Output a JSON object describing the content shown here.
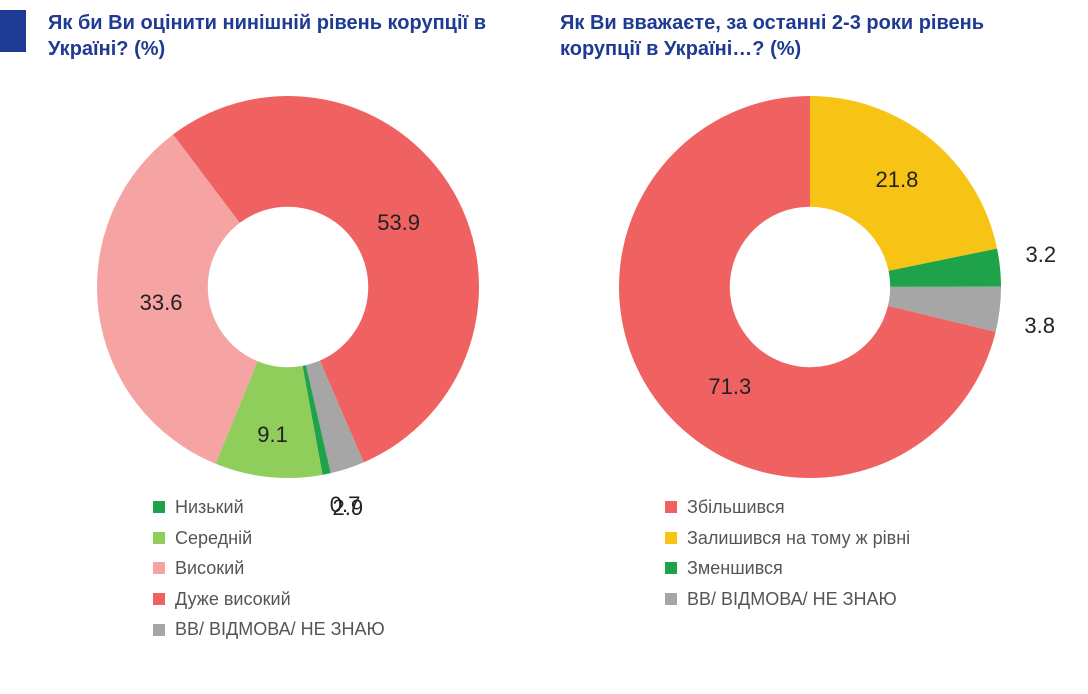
{
  "accent_color": "#1f3a93",
  "charts": [
    {
      "id": "left",
      "title": "Як би Ви оцінити нинішній рівень корупції в Україні? (%)",
      "type": "donut",
      "inner_radius_pct": 42,
      "title_fontsize": 20,
      "title_color": "#1f3a93",
      "label_fontsize": 22,
      "label_color": "#222222",
      "start_angle_deg": -37,
      "slices": [
        {
          "value": 53.9,
          "label": "53.9",
          "color": "#f06262",
          "legend": "Дуже високий",
          "label_r": 0.67,
          "label_offset_deg": 0
        },
        {
          "value": 2.9,
          "label": "2.9",
          "color": "#a6a6a6",
          "legend": "ВВ/ ВІДМОВА/ НЕ ЗНАЮ",
          "label_r": 1.2,
          "label_offset_deg": 3
        },
        {
          "value": 0.7,
          "label": "0.7",
          "color": "#1fa34a",
          "legend": "Низький",
          "label_r": 1.18,
          "label_offset_deg": -3
        },
        {
          "value": 9.1,
          "label": "9.1",
          "color": "#8fce5a",
          "legend": "Середній",
          "label_r": 0.78,
          "label_offset_deg": 0
        },
        {
          "value": 33.6,
          "label": "33.6",
          "color": "#f5a3a3",
          "legend": "Високий",
          "label_r": 0.67,
          "label_offset_deg": 0
        }
      ],
      "legend_order": [
        2,
        3,
        4,
        0,
        1
      ]
    },
    {
      "id": "right",
      "title": "Як Ви вважаєте, за останні 2-3 роки рівень корупції в Україні…? (%)",
      "type": "donut",
      "inner_radius_pct": 42,
      "title_fontsize": 20,
      "title_color": "#1f3a93",
      "label_fontsize": 22,
      "label_color": "#222222",
      "start_angle_deg": 0,
      "slices": [
        {
          "value": 21.8,
          "label": "21.8",
          "color": "#f7c314",
          "legend": "Залишився на тому ж рівні",
          "label_r": 0.72,
          "label_offset_deg": 0
        },
        {
          "value": 3.2,
          "label": "3.2",
          "color": "#1fa34a",
          "legend": "Зменшився",
          "label_r": 1.22,
          "label_offset_deg": -2
        },
        {
          "value": 3.8,
          "label": "3.8",
          "color": "#a6a6a6",
          "legend": "ВВ/ ВІДМОВА/ НЕ ЗНАЮ",
          "label_r": 1.22,
          "label_offset_deg": 3
        },
        {
          "value": 71.3,
          "label": "71.3",
          "color": "#f06262",
          "legend": "Збільшився",
          "label_r": 0.67,
          "label_offset_deg": -13
        }
      ],
      "legend_order": [
        3,
        0,
        1,
        2
      ]
    }
  ]
}
